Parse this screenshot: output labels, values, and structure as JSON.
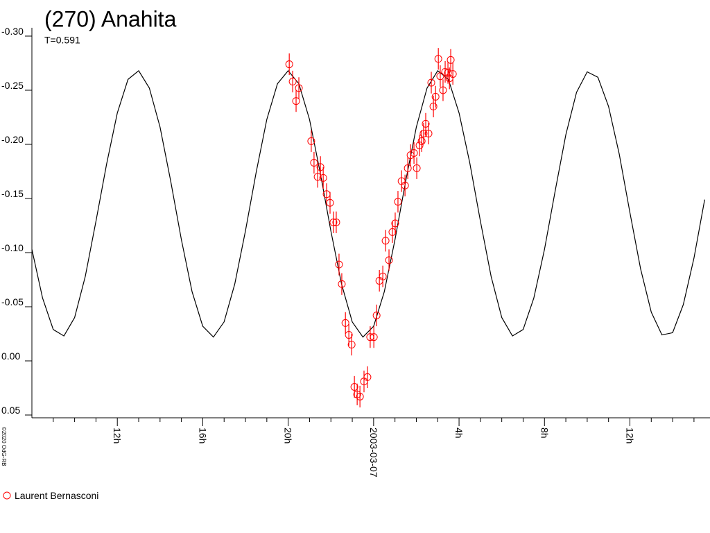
{
  "chart_data": {
    "type": "scatter",
    "title": "(270) Anahita",
    "subtitle": "T=0.591",
    "credit": "©2020 OdG-RB",
    "xlim": [
      8,
      39.75
    ],
    "ylim": [
      0.05,
      -0.3
    ],
    "xticks": [
      {
        "value": 12,
        "label": "12h"
      },
      {
        "value": 16,
        "label": "16h"
      },
      {
        "value": 20,
        "label": "20h"
      },
      {
        "value": 24,
        "label": "2003-03-07"
      },
      {
        "value": 28,
        "label": "4h"
      },
      {
        "value": 32,
        "label": "8h"
      },
      {
        "value": 36,
        "label": "12h"
      }
    ],
    "xminorticks": [
      9,
      10,
      11,
      13,
      14,
      15,
      17,
      18,
      19,
      21,
      22,
      23,
      25,
      26,
      27,
      29,
      30,
      31,
      33,
      34,
      35,
      37,
      38,
      39
    ],
    "yticks": [
      {
        "value": -0.3,
        "label": "-0.30"
      },
      {
        "value": -0.25,
        "label": "-0.25"
      },
      {
        "value": -0.2,
        "label": "-0.20"
      },
      {
        "value": -0.15,
        "label": "-0.15"
      },
      {
        "value": -0.1,
        "label": "-0.10"
      },
      {
        "value": -0.05,
        "label": "-0.05"
      },
      {
        "value": 0,
        "label": "0.00"
      },
      {
        "value": 0.05,
        "label": "0.05"
      }
    ],
    "fit": {
      "color": "#000000",
      "x": [
        8,
        8.5,
        9,
        9.5,
        10,
        10.5,
        11,
        11.5,
        12,
        12.5,
        13,
        13.5,
        14,
        14.5,
        15,
        15.5,
        16,
        16.5,
        17,
        17.5,
        18,
        18.5,
        19,
        19.5,
        20,
        20.5,
        21,
        21.5,
        22,
        22.5,
        23,
        23.5,
        24,
        24.5,
        25,
        25.5,
        26,
        26.5,
        27,
        27.5,
        28,
        28.5,
        29,
        29.5,
        30,
        30.5,
        31,
        31.5,
        32,
        32.5,
        33,
        33.5,
        34,
        34.5,
        35,
        35.5,
        36,
        36.5,
        37,
        37.5,
        38,
        38.5,
        39,
        39.5
      ],
      "values": [
        -0.103,
        -0.058,
        -0.029,
        -0.023,
        -0.04,
        -0.078,
        -0.129,
        -0.182,
        -0.229,
        -0.26,
        -0.268,
        -0.252,
        -0.216,
        -0.166,
        -0.112,
        -0.064,
        -0.032,
        -0.022,
        -0.036,
        -0.071,
        -0.12,
        -0.174,
        -0.223,
        -0.256,
        -0.268,
        -0.256,
        -0.223,
        -0.174,
        -0.12,
        -0.071,
        -0.036,
        -0.022,
        -0.032,
        -0.064,
        -0.112,
        -0.166,
        -0.216,
        -0.252,
        -0.268,
        -0.26,
        -0.229,
        -0.183,
        -0.129,
        -0.078,
        -0.04,
        -0.023,
        -0.029,
        -0.058,
        -0.103,
        -0.157,
        -0.209,
        -0.248,
        -0.267,
        -0.262,
        -0.235,
        -0.191,
        -0.137,
        -0.085,
        -0.045,
        -0.024,
        -0.026,
        -0.052,
        -0.095,
        -0.149
      ]
    },
    "series": [
      {
        "name": "Laurent Bernasconi",
        "color": "#ff0000",
        "x": [
          20.05,
          20.21,
          20.37,
          20.5,
          21.08,
          21.21,
          21.38,
          21.51,
          21.64,
          21.8,
          21.96,
          22.12,
          22.25,
          22.38,
          22.51,
          22.68,
          22.84,
          22.97,
          23.1,
          23.23,
          23.36,
          23.55,
          23.71,
          23.84,
          24.01,
          24.14,
          24.27,
          24.43,
          24.56,
          24.72,
          24.88,
          25.01,
          25.14,
          25.31,
          25.47,
          25.6,
          25.73,
          25.89,
          26.02,
          26.15,
          26.25,
          26.34,
          26.44,
          26.57,
          26.7,
          26.8,
          26.9,
          27.03,
          27.12,
          27.25,
          27.35,
          27.48,
          27.55,
          27.61,
          27.71
        ],
        "values": [
          -0.274,
          -0.258,
          -0.24,
          -0.252,
          -0.203,
          -0.183,
          -0.17,
          -0.179,
          -0.169,
          -0.154,
          -0.146,
          -0.128,
          -0.128,
          -0.089,
          -0.071,
          -0.035,
          -0.024,
          -0.015,
          0.024,
          0.031,
          0.033,
          0.019,
          0.015,
          -0.022,
          -0.022,
          -0.042,
          -0.074,
          -0.078,
          -0.111,
          -0.093,
          -0.119,
          -0.127,
          -0.147,
          -0.166,
          -0.162,
          -0.178,
          -0.19,
          -0.192,
          -0.178,
          -0.199,
          -0.203,
          -0.21,
          -0.219,
          -0.21,
          -0.257,
          -0.235,
          -0.244,
          -0.279,
          -0.263,
          -0.25,
          -0.267,
          -0.266,
          -0.261,
          -0.278,
          -0.265
        ],
        "errors": [
          0.01,
          0.01,
          0.01,
          0.01,
          0.01,
          0.01,
          0.01,
          0.01,
          0.01,
          0.01,
          0.01,
          0.01,
          0.01,
          0.01,
          0.01,
          0.01,
          0.01,
          0.01,
          0.01,
          0.01,
          0.01,
          0.01,
          0.01,
          0.01,
          0.01,
          0.01,
          0.01,
          0.01,
          0.01,
          0.01,
          0.01,
          0.01,
          0.01,
          0.01,
          0.01,
          0.01,
          0.01,
          0.01,
          0.01,
          0.01,
          0.01,
          0.01,
          0.01,
          0.01,
          0.01,
          0.01,
          0.01,
          0.01,
          0.01,
          0.01,
          0.01,
          0.01,
          0.01,
          0.01,
          0.01
        ]
      }
    ]
  }
}
